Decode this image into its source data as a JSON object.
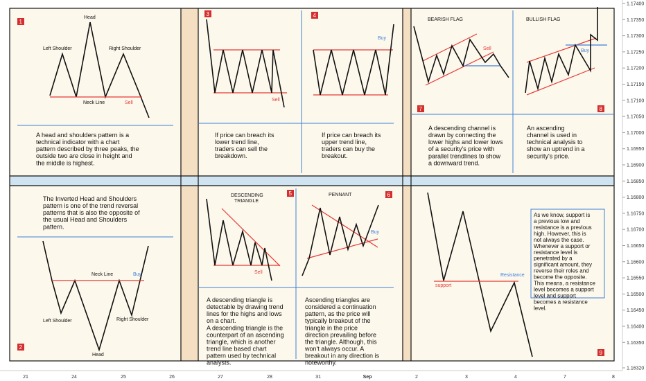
{
  "colors": {
    "panel_bg": "#fdf8ec",
    "tan_bg": "#f5dfc2",
    "band_bg": "#cfe3f0",
    "line": "#111111",
    "red": "#e53935",
    "blue": "#3d7fd9",
    "badge": "#d32f2f"
  },
  "price_axis": [
    "1.17400",
    "1.17350",
    "1.17300",
    "1.17250",
    "1.17200",
    "1.17150",
    "1.17100",
    "1.17050",
    "1.17000",
    "1.16950",
    "1.16900",
    "1.16850",
    "1.16800",
    "1.16750",
    "1.16700",
    "1.16650",
    "1.16600",
    "1.16550",
    "1.16500",
    "1.16450",
    "1.16400",
    "1.16350",
    "1.16320"
  ],
  "time_axis": [
    "21",
    "24",
    "25",
    "26",
    "27",
    "28",
    "31",
    "Sep",
    "2",
    "3",
    "4",
    "7",
    "8"
  ],
  "panels": {
    "p1": {
      "badge": "1",
      "head": "Head",
      "left_shoulder": "Left Shoulder",
      "right_shoulder": "Right Shoulder",
      "neck_line": "Neck Line",
      "sell": "Sell",
      "text": [
        "A head and shoulders pattern is a",
        "technical indicator with a chart",
        "pattern described by three peaks, the",
        "outside two are close in height and",
        "the middle is highest."
      ]
    },
    "p2": {
      "badge": "2",
      "head": "Head",
      "left_shoulder": "Left Shoulder",
      "right_shoulder": "Right Shoulder",
      "neck_line": "Neck Line",
      "buy": "Buy",
      "text": [
        "The Inverted Head and Shoulders",
        "pattern is one of the trend reversal",
        "patterns that is also the opposite of",
        "the usual Head and Shoulders",
        "pattern."
      ]
    },
    "p3": {
      "badge": "3",
      "sell": "Sell",
      "text": [
        "If price can breach its",
        "lower trend line,",
        "traders can sell the",
        "breakdown."
      ]
    },
    "p4": {
      "badge": "4",
      "buy": "Buy",
      "text": [
        "If price can breach its",
        "upper trend line,",
        "traders can buy the",
        "breakout."
      ]
    },
    "p5": {
      "badge": "5",
      "title": [
        "DESCENDING",
        "TRIANGLE"
      ],
      "sell": "Sell",
      "text": [
        "A descending triangle is",
        "detectable by drawing trend",
        "lines for the highs and lows",
        "on a chart.",
        "A descending triangle is the",
        "counterpart of an ascending",
        "triangle, which is another",
        "trend line based chart",
        "pattern used by technical",
        "analysts."
      ]
    },
    "p6": {
      "badge": "6",
      "title": "PENNANT",
      "buy": "Buy",
      "text": [
        "Ascending triangles are",
        "considered a continuation",
        "pattern, as the price will",
        "typically breakout of the",
        "triangle in the price",
        "direction prevailing before",
        "the triangle. Although, this",
        "won't always occur. A",
        "breakout in any direction is",
        "noteworthy."
      ]
    },
    "p7": {
      "badge": "7",
      "title": "BEARISH FLAG",
      "sell": "Sell",
      "text": [
        "A descending channel is",
        "drawn by connecting the",
        "lower highs and lower lows",
        "of a security's price with",
        "parallel trendlines to show",
        "a downward trend."
      ]
    },
    "p8": {
      "badge": "8",
      "title": "BULLISH FLAG",
      "buy": "Buy",
      "text": [
        "An ascending",
        "channel is used in",
        "technical analysis to",
        "show an uptrend in a",
        "security's price."
      ]
    },
    "p9": {
      "badge": "9",
      "support": "support",
      "resistance": "Resistance",
      "text": [
        "As we know, support is",
        "a previous low and",
        "resistance is a previous",
        "high. However, this is",
        "not always the case.",
        "Whenever a support or",
        "resistance level is",
        "penetrated by a",
        "significant amount, they",
        "reverse their roles and",
        "become the opposite.",
        "This means, a resistance",
        "level becomes a support",
        "level and support",
        "becomes a resistance",
        "level."
      ]
    }
  }
}
